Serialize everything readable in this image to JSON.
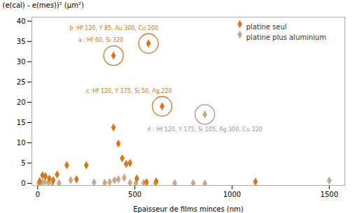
{
  "chart_data": {
    "type": "scatter",
    "xlabel": "Epaisseur de films minces (nm)",
    "ylabel": "(e(cal) - e(mes))² (µm²)",
    "series": [
      {
        "name": "platine plus aluminium",
        "color": "#C8A888",
        "marker": "diamond",
        "x": [
          5,
          20,
          35,
          55,
          75,
          110,
          170,
          290,
          345,
          370,
          395,
          415,
          445,
          475,
          505,
          545,
          605,
          705,
          800,
          860,
          1500,
          860
        ],
        "values": [
          0.1,
          0.2,
          0.4,
          0.15,
          0.1,
          0.1,
          0.8,
          0.25,
          0.15,
          0.35,
          0.75,
          1.0,
          1.4,
          0.15,
          0.05,
          0.15,
          0.1,
          0.05,
          0.1,
          0.0,
          0.7,
          17.0
        ]
      },
      {
        "name": "platine seul",
        "color": "#D4781E",
        "marker": "diamond",
        "x": [
          10,
          25,
          40,
          60,
          80,
          100,
          150,
          200,
          250,
          390,
          415,
          435,
          455,
          475,
          510,
          560,
          610,
          1120,
          390,
          570,
          640
        ],
        "values": [
          0.5,
          2.0,
          1.8,
          1.2,
          0.8,
          2.2,
          4.5,
          1.0,
          4.5,
          13.8,
          9.8,
          6.2,
          4.8,
          5.0,
          1.2,
          0.3,
          0.5,
          0.4,
          31.5,
          34.5,
          19.0
        ]
      }
    ],
    "annotations": [
      {
        "x": 390,
        "y": 31.5,
        "text": "a : Hf 60, Si 320",
        "color": "#C87828"
      },
      {
        "x": 570,
        "y": 34.5,
        "text": "b :Hf 120, Y 85, Au 300, Cu 200",
        "color": "#C87828"
      },
      {
        "x": 640,
        "y": 19.0,
        "text": "c :Hf 120, Y 175, Si 50, Ag 220",
        "color": "#C87828"
      },
      {
        "x": 860,
        "y": 17.0,
        "text": "d : Hf 120, Y 175, Si 105, Ag 300, Cu 220",
        "color": "#A89090"
      }
    ],
    "xlim": [
      -30,
      1580
    ],
    "ylim": [
      -0.5,
      41
    ],
    "xticks": [
      0,
      500,
      1000,
      1500
    ],
    "yticks": [
      0,
      5,
      10,
      15,
      20,
      25,
      30,
      35,
      40
    ],
    "legend": "upper right",
    "grid": false
  }
}
